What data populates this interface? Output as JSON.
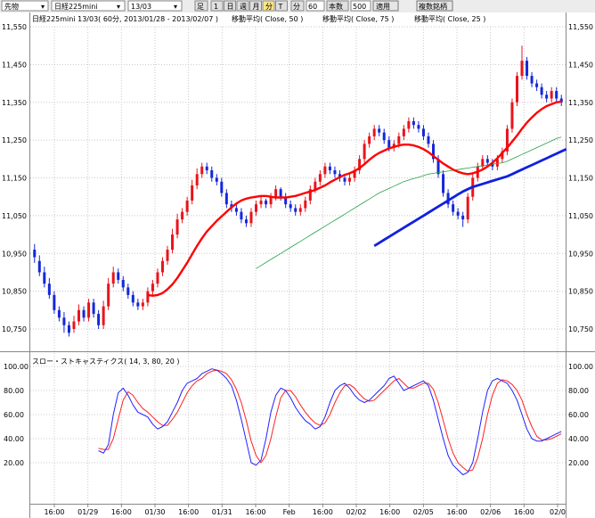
{
  "toolbar": {
    "market": "先物",
    "symbol": "日経225mini",
    "contract": "13/03",
    "chart_kind": "足",
    "periods": [
      "1",
      "日",
      "週",
      "月",
      "分",
      "T"
    ],
    "interval_label": "分",
    "interval_value": "60",
    "count_label": "本数",
    "count_value": "500",
    "apply": "適用",
    "compare": "複数銘柄"
  },
  "price_panel": {
    "header": [
      "日経225mini 13/03( 60分, 2013/01/28 - 2013/02/07 )",
      "移動平均( Close, 50 )",
      "移動平均( Close, 75 )",
      "移動平均( Close, 25 )"
    ]
  },
  "osc_panel": {
    "header": "スロー・ストキャスティクス( 14, 3, 80, 20 )"
  },
  "colors": {
    "up": "#e8141c",
    "down": "#1428d8",
    "ma25": "#ff0000",
    "ma50": "#2aa04a",
    "ma75": "#1020e0",
    "k": "#2020ff",
    "d": "#ff2020",
    "grid": "#c8c8c8"
  },
  "chart_data": [
    {
      "type": "candlestick",
      "title": "日経225mini 13/03( 60分, 2013/01/28 - 2013/02/07 )",
      "y_ticks": [
        "11,550",
        "11,450",
        "11,350",
        "11,250",
        "11,150",
        "11,050",
        "10,950",
        "10,850",
        "10,750"
      ],
      "ylim": [
        10700,
        11560
      ],
      "x_ticks": [
        "16:00",
        "01/29",
        "16:00",
        "01/30",
        "16:00",
        "01/31",
        "16:00",
        "Feb",
        "16:00",
        "02/02",
        "16:00",
        "02/05",
        "16:00",
        "02/06",
        "16:00",
        "02/0"
      ],
      "series_close": [
        10940,
        10900,
        10870,
        10840,
        10800,
        10780,
        10760,
        10740,
        10770,
        10800,
        10780,
        10820,
        10790,
        10760,
        10810,
        10870,
        10900,
        10880,
        10860,
        10840,
        10820,
        10810,
        10820,
        10850,
        10870,
        10900,
        10930,
        10960,
        11000,
        11040,
        11060,
        11090,
        11130,
        11160,
        11180,
        11170,
        11150,
        11140,
        11110,
        11080,
        11070,
        11060,
        11040,
        11030,
        11060,
        11080,
        11090,
        11080,
        11100,
        11120,
        11100,
        11080,
        11070,
        11060,
        11070,
        11090,
        11120,
        11140,
        11160,
        11180,
        11170,
        11160,
        11150,
        11140,
        11150,
        11170,
        11200,
        11240,
        11260,
        11280,
        11270,
        11250,
        11230,
        11240,
        11260,
        11280,
        11300,
        11290,
        11280,
        11260,
        11240,
        11200,
        11160,
        11110,
        11080,
        11060,
        11050,
        11040,
        11100,
        11150,
        11180,
        11200,
        11190,
        11180,
        11200,
        11220,
        11280,
        11350,
        11420,
        11460,
        11420,
        11400,
        11390,
        11370,
        11360,
        11380,
        11360,
        11350
      ],
      "series_open": [
        10960,
        10930,
        10900,
        10870,
        10840,
        10800,
        10780,
        10760,
        10750,
        10770,
        10800,
        10780,
        10820,
        10790,
        10760,
        10810,
        10870,
        10900,
        10880,
        10860,
        10840,
        10820,
        10810,
        10820,
        10850,
        10870,
        10900,
        10930,
        10960,
        11000,
        11040,
        11060,
        11090,
        11130,
        11160,
        11180,
        11170,
        11150,
        11140,
        11110,
        11080,
        11070,
        11060,
        11040,
        11030,
        11060,
        11080,
        11090,
        11080,
        11100,
        11120,
        11100,
        11080,
        11070,
        11060,
        11070,
        11090,
        11120,
        11140,
        11160,
        11180,
        11170,
        11160,
        11150,
        11140,
        11150,
        11170,
        11200,
        11240,
        11260,
        11280,
        11270,
        11250,
        11230,
        11240,
        11260,
        11280,
        11300,
        11290,
        11280,
        11260,
        11240,
        11200,
        11160,
        11110,
        11080,
        11060,
        11050,
        11040,
        11100,
        11150,
        11180,
        11200,
        11190,
        11180,
        11200,
        11220,
        11280,
        11350,
        11420,
        11460,
        11420,
        11400,
        11390,
        11370,
        11360,
        11380,
        11360
      ],
      "series_high": [
        10975,
        10945,
        10915,
        10885,
        10850,
        10810,
        10795,
        10770,
        10785,
        10815,
        10810,
        10830,
        10830,
        10800,
        10825,
        10885,
        10915,
        10910,
        10890,
        10870,
        10850,
        10830,
        10830,
        10860,
        10880,
        10910,
        10940,
        10970,
        11015,
        11055,
        11070,
        11100,
        11145,
        11175,
        11190,
        11190,
        11180,
        11160,
        11150,
        11120,
        11090,
        11080,
        11070,
        11050,
        11070,
        11090,
        11100,
        11095,
        11110,
        11130,
        11125,
        11110,
        11090,
        11080,
        11080,
        11100,
        11130,
        11150,
        11170,
        11190,
        11190,
        11180,
        11170,
        11160,
        11160,
        11180,
        11210,
        11250,
        11270,
        11290,
        11290,
        11280,
        11260,
        11250,
        11270,
        11290,
        11310,
        11310,
        11300,
        11290,
        11270,
        11250,
        11210,
        11170,
        11120,
        11090,
        11070,
        11060,
        11110,
        11160,
        11190,
        11210,
        11210,
        11200,
        11210,
        11230,
        11290,
        11360,
        11430,
        11500,
        11470,
        11430,
        11410,
        11400,
        11380,
        11390,
        11390,
        11370
      ],
      "series_low": [
        10925,
        10890,
        10860,
        10830,
        10790,
        10770,
        10740,
        10730,
        10740,
        10760,
        10770,
        10770,
        10780,
        10750,
        10750,
        10800,
        10860,
        10870,
        10850,
        10830,
        10810,
        10800,
        10800,
        10810,
        10840,
        10860,
        10890,
        10920,
        10950,
        10990,
        11030,
        11050,
        11080,
        11120,
        11150,
        11160,
        11140,
        11130,
        11100,
        11070,
        11060,
        11050,
        11030,
        11020,
        11020,
        11050,
        11070,
        11070,
        11070,
        11090,
        11090,
        11070,
        11060,
        11050,
        11050,
        11060,
        11080,
        11110,
        11130,
        11150,
        11160,
        11150,
        11140,
        11130,
        11130,
        11140,
        11160,
        11190,
        11230,
        11250,
        11260,
        11240,
        11220,
        11220,
        11230,
        11250,
        11270,
        11280,
        11270,
        11250,
        11230,
        11190,
        11150,
        11100,
        11070,
        11050,
        11040,
        11020,
        11030,
        11090,
        11140,
        11170,
        11180,
        11170,
        11170,
        11190,
        11210,
        11270,
        11340,
        11410,
        11410,
        11390,
        11380,
        11360,
        11350,
        11350,
        11350,
        11340
      ],
      "series": [
        {
          "name": "移動平均( Close, 25 )",
          "key": "ma25"
        },
        {
          "name": "移動平均( Close, 50 )",
          "key": "ma50"
        },
        {
          "name": "移動平均( Close, 75 )",
          "key": "ma75"
        }
      ],
      "ma25": [
        null,
        null,
        null,
        null,
        null,
        null,
        null,
        null,
        null,
        null,
        null,
        null,
        null,
        null,
        null,
        null,
        null,
        null,
        null,
        null,
        null,
        null,
        null,
        10840,
        10838,
        10840,
        10845,
        10855,
        10868,
        10885,
        10905,
        10925,
        10948,
        10970,
        10990,
        11008,
        11022,
        11036,
        11048,
        11060,
        11072,
        11082,
        11090,
        11095,
        11098,
        11100,
        11102,
        11102,
        11100,
        11098,
        11098,
        11098,
        11100,
        11102,
        11106,
        11110,
        11114,
        11118,
        11124,
        11130,
        11138,
        11145,
        11152,
        11158,
        11162,
        11168,
        11176,
        11186,
        11198,
        11208,
        11216,
        11222,
        11228,
        11232,
        11236,
        11238,
        11238,
        11236,
        11232,
        11226,
        11218,
        11208,
        11198,
        11188,
        11180,
        11172,
        11166,
        11162,
        11160,
        11162,
        11166,
        11172,
        11180,
        11190,
        11202,
        11216,
        11230,
        11246,
        11262,
        11280,
        11296,
        11310,
        11322,
        11332,
        11340,
        11345,
        11350,
        11352
      ],
      "ma50": [
        null,
        null,
        null,
        null,
        null,
        null,
        null,
        null,
        null,
        null,
        null,
        null,
        null,
        null,
        null,
        null,
        null,
        null,
        null,
        null,
        null,
        null,
        null,
        null,
        null,
        null,
        null,
        null,
        null,
        null,
        null,
        null,
        null,
        null,
        null,
        null,
        null,
        null,
        null,
        null,
        null,
        null,
        null,
        null,
        null,
        10910,
        10918,
        10926,
        10934,
        10942,
        10950,
        10958,
        10966,
        10974,
        10982,
        10990,
        10998,
        11006,
        11014,
        11022,
        11030,
        11038,
        11046,
        11054,
        11062,
        11070,
        11078,
        11086,
        11094,
        11102,
        11110,
        11116,
        11122,
        11128,
        11134,
        11140,
        11144,
        11148,
        11152,
        11156,
        11160,
        11162,
        11164,
        11166,
        11168,
        11170,
        11172,
        11174,
        11176,
        11178,
        11180,
        11182,
        11184,
        11186,
        11188,
        11190,
        11194,
        11200,
        11206,
        11212,
        11218,
        11224,
        11230,
        11236,
        11242,
        11248,
        11254,
        11258
      ],
      "ma75": [
        null,
        null,
        null,
        null,
        null,
        null,
        null,
        null,
        null,
        null,
        null,
        null,
        null,
        null,
        null,
        null,
        null,
        null,
        null,
        null,
        null,
        null,
        null,
        null,
        null,
        null,
        null,
        null,
        null,
        null,
        null,
        null,
        null,
        null,
        null,
        null,
        null,
        null,
        null,
        null,
        null,
        null,
        null,
        null,
        null,
        null,
        null,
        null,
        null,
        null,
        null,
        null,
        null,
        null,
        null,
        null,
        null,
        null,
        null,
        null,
        null,
        null,
        null,
        null,
        null,
        null,
        null,
        null,
        null,
        10970,
        10978,
        10986,
        10994,
        11002,
        11010,
        11018,
        11026,
        11034,
        11042,
        11050,
        11058,
        11066,
        11074,
        11082,
        11090,
        11098,
        11106,
        11114,
        11120,
        11126,
        11130,
        11134,
        11138,
        11142,
        11146,
        11150,
        11154,
        11160,
        11166,
        11172,
        11178,
        11184,
        11190,
        11196,
        11202,
        11208,
        11214,
        11220,
        11226
      ]
    },
    {
      "type": "line",
      "title": "スロー・ストキャスティクス( 14, 3, 80, 20 )",
      "y_ticks": [
        "100.00",
        "80.00",
        "60.00",
        "40.00",
        "20.00"
      ],
      "ylim": [
        0,
        100
      ],
      "series": [
        {
          "name": "%K",
          "values": [
            null,
            null,
            null,
            null,
            null,
            null,
            null,
            null,
            null,
            null,
            null,
            null,
            null,
            30,
            28,
            35,
            60,
            78,
            82,
            76,
            68,
            62,
            60,
            58,
            52,
            48,
            50,
            54,
            62,
            70,
            80,
            86,
            88,
            90,
            94,
            96,
            98,
            97,
            94,
            90,
            84,
            72,
            56,
            38,
            20,
            18,
            22,
            40,
            62,
            76,
            82,
            80,
            74,
            66,
            60,
            55,
            52,
            48,
            50,
            58,
            70,
            80,
            84,
            86,
            82,
            76,
            72,
            70,
            72,
            76,
            80,
            84,
            90,
            92,
            86,
            80,
            82,
            84,
            86,
            88,
            84,
            72,
            56,
            40,
            26,
            18,
            14,
            10,
            12,
            20,
            40,
            62,
            80,
            88,
            90,
            88,
            86,
            80,
            72,
            60,
            48,
            40,
            38,
            38,
            40,
            42,
            44,
            46
          ]
        },
        {
          "name": "%D",
          "values": [
            null,
            null,
            null,
            null,
            null,
            null,
            null,
            null,
            null,
            null,
            null,
            null,
            null,
            32,
            31,
            31,
            40,
            56,
            72,
            79,
            76,
            70,
            65,
            62,
            58,
            54,
            51,
            51,
            56,
            62,
            70,
            78,
            84,
            88,
            90,
            94,
            96,
            97,
            96,
            94,
            89,
            81,
            70,
            55,
            38,
            26,
            20,
            26,
            40,
            58,
            74,
            80,
            80,
            75,
            68,
            62,
            57,
            53,
            51,
            53,
            60,
            70,
            78,
            84,
            85,
            82,
            77,
            73,
            71,
            72,
            76,
            80,
            84,
            88,
            90,
            86,
            82,
            82,
            84,
            86,
            86,
            81,
            70,
            55,
            40,
            28,
            20,
            16,
            13,
            14,
            24,
            40,
            60,
            76,
            86,
            89,
            88,
            85,
            80,
            72,
            60,
            50,
            42,
            39,
            39,
            40,
            42,
            44
          ]
        }
      ]
    }
  ]
}
